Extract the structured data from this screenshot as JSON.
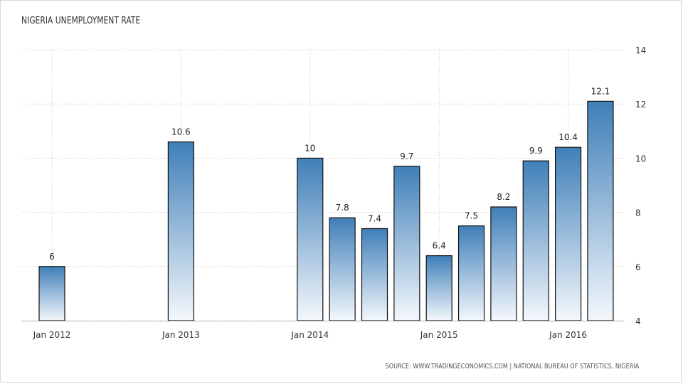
{
  "chart_data": {
    "type": "bar",
    "title": "NIGERIA UNEMPLOYMENT RATE",
    "source": "SOURCE: WWW.TRADINGECONOMICS.COM | NATIONAL BUREAU OF STATISTICS, NIGERIA",
    "x": [
      "2012-Q1",
      "2013-Q1",
      "2014-Q1",
      "2014-Q2",
      "2014-Q3",
      "2014-Q4",
      "2015-Q1",
      "2015-Q2",
      "2015-Q3",
      "2015-Q4",
      "2016-Q1",
      "2016-Q2"
    ],
    "values": [
      6,
      10.6,
      10,
      7.8,
      7.4,
      9.7,
      6.4,
      7.5,
      8.2,
      9.9,
      10.4,
      12.1
    ],
    "labels": [
      "6",
      "10.6",
      "10",
      "7.8",
      "7.4",
      "9.7",
      "6.4",
      "7.5",
      "8.2",
      "9.9",
      "10.4",
      "12.1"
    ],
    "x_ticks": [
      {
        "label": "Jan 2012",
        "at": "2012-Q1"
      },
      {
        "label": "Jan 2013",
        "at": "2013-Q1"
      },
      {
        "label": "Jan 2014",
        "at": "2014-Q1"
      },
      {
        "label": "Jan 2015",
        "at": "2015-Q1"
      },
      {
        "label": "Jan 2016",
        "at": "2016-Q1"
      }
    ],
    "y_ticks": [
      4,
      6,
      8,
      10,
      12,
      14
    ],
    "ylim": [
      4,
      14
    ],
    "y_axis_side": "right",
    "grid": true,
    "bar_gradient": [
      "#3f7fb8",
      "#f4f8fc"
    ]
  }
}
